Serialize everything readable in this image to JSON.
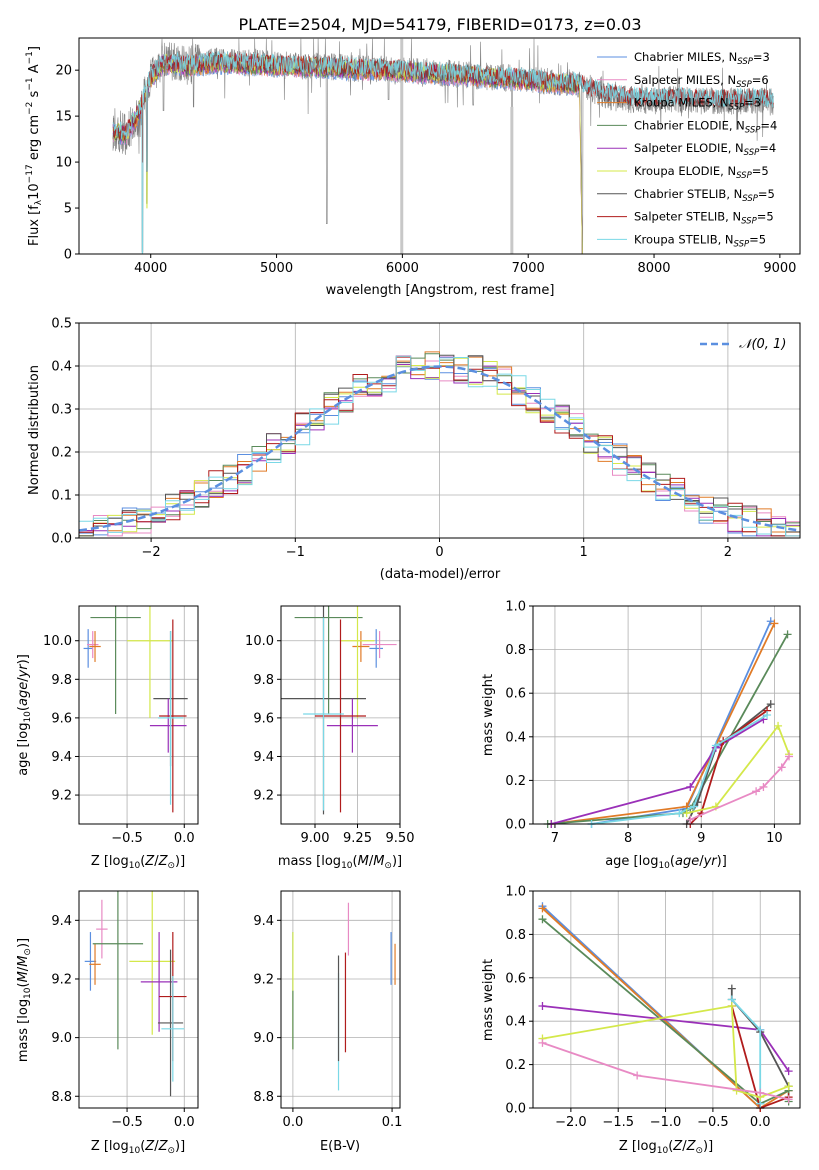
{
  "figure_title": "PLATE=2504, MJD=54179, FIBERID=0173, z=0.03",
  "models": [
    {
      "label": "Chabrier MILES, N",
      "sub": "SSP",
      "count": "=3",
      "color": "#5b8fe0"
    },
    {
      "label": "Salpeter MILES, N",
      "sub": "SSP",
      "count": "=6",
      "color": "#e88ac4"
    },
    {
      "label": "Kroupa MILES, N",
      "sub": "SSP",
      "count": "=3",
      "color": "#e07b27"
    },
    {
      "label": "Chabrier ELODIE, N",
      "sub": "SSP",
      "count": "=4",
      "color": "#5a8a5a"
    },
    {
      "label": "Salpeter ELODIE, N",
      "sub": "SSP",
      "count": "=4",
      "color": "#9a30b8"
    },
    {
      "label": "Kroupa ELODIE, N",
      "sub": "SSP",
      "count": "=5",
      "color": "#d4e84a"
    },
    {
      "label": "Chabrier STELIB, N",
      "sub": "SSP",
      "count": "=5",
      "color": "#555555"
    },
    {
      "label": "Salpeter STELIB, N",
      "sub": "SSP",
      "count": "=5",
      "color": "#b01c1c"
    },
    {
      "label": "Kroupa STELIB, N",
      "sub": "SSP",
      "count": "=5",
      "color": "#7ad8e6"
    }
  ],
  "chart_data": [
    {
      "type": "line",
      "id": "spectrum",
      "xlabel": "wavelength [Angstrom, rest frame]",
      "ylabel": "Flux [fλ10⁻¹⁷ erg cm⁻² s⁻¹ A⁻¹]",
      "xlim": [
        3430,
        9160
      ],
      "ylim": [
        0,
        23.5
      ],
      "xticks": [
        4000,
        5000,
        6000,
        7000,
        8000,
        9000
      ],
      "yticks": [
        0,
        5,
        10,
        15,
        20
      ],
      "data_color": "#808080",
      "data_envelope": {
        "x": [
          3700,
          3800,
          3900,
          4000,
          4100,
          4300,
          4500,
          4800,
          5100,
          5500,
          6000,
          6500,
          7000,
          7400,
          7600,
          7800,
          8000,
          8200,
          8500,
          8800,
          8950
        ],
        "y": [
          13.5,
          13.0,
          15.0,
          19.0,
          21.0,
          20.5,
          21.0,
          20.8,
          20.5,
          20.3,
          20.0,
          19.5,
          19.0,
          18.5,
          17.2,
          16.8,
          16.7,
          16.8,
          16.6,
          16.7,
          16.5
        ]
      },
      "model_envelope": {
        "x": [
          3700,
          3800,
          3900,
          4000,
          4100,
          4300,
          4500,
          4800,
          5100,
          5500,
          6000,
          6500,
          7000,
          7400
        ],
        "y": [
          13.3,
          13.0,
          15.2,
          19.2,
          20.8,
          20.4,
          20.8,
          20.6,
          20.4,
          20.2,
          19.9,
          19.4,
          18.9,
          18.4
        ]
      },
      "stelib_extension": {
        "x": [
          7400,
          7600,
          7800,
          8000,
          8200,
          8500,
          8800,
          8950
        ],
        "y": [
          18.4,
          17.4,
          16.9,
          16.8,
          16.9,
          16.7,
          16.8,
          16.6
        ]
      },
      "absorption_lines": [
        {
          "x": 3934,
          "y": 0.2
        },
        {
          "x": 3969,
          "y": 5.5
        },
        {
          "x": 4102,
          "y": 15.6
        },
        {
          "x": 4340,
          "y": 16.0
        },
        {
          "x": 5400,
          "y": 3.3
        },
        {
          "x": 5890,
          "y": 16.8
        },
        {
          "x": 6563,
          "y": 16.2
        },
        {
          "x": 6870,
          "y": 0
        },
        {
          "x": 7430,
          "y": 0
        }
      ]
    },
    {
      "type": "histogram",
      "id": "residuals",
      "xlabel": "(data-model)/error",
      "ylabel": "Normed distribution",
      "xlim": [
        -2.5,
        2.5
      ],
      "ylim": [
        0,
        0.5
      ],
      "xticks": [
        -2,
        -1,
        0,
        1,
        2
      ],
      "yticks": [
        0.0,
        0.1,
        0.2,
        0.3,
        0.4,
        0.5
      ],
      "bin_width": 0.1,
      "gaussian_label": "𝒩(0, 1)",
      "gaussian_color": "#5b8fe0"
    },
    {
      "type": "scatter",
      "id": "age-vs-Z",
      "xlabel": "Z [log₁₀(Z/Z⊙)]",
      "ylabel": "age  [log₁₀(age/yr)]",
      "xlim": [
        -0.92,
        0.12
      ],
      "ylim": [
        9.05,
        10.18
      ],
      "xticks": [
        -0.5,
        0.0
      ],
      "yticks": [
        9.2,
        9.4,
        9.6,
        9.8,
        10.0
      ],
      "points": [
        {
          "x": -0.84,
          "y": 9.96,
          "xerr": 0.04,
          "yerr": 0.1,
          "color": "#5b8fe0"
        },
        {
          "x": -0.8,
          "y": 9.98,
          "xerr": 0.05,
          "yerr": 0.07,
          "color": "#e88ac4"
        },
        {
          "x": -0.78,
          "y": 9.97,
          "xerr": 0.05,
          "yerr": 0.08,
          "color": "#e07b27"
        },
        {
          "x": -0.6,
          "y": 10.12,
          "xerr": 0.22,
          "yerr": 0.5,
          "color": "#5a8a5a"
        },
        {
          "x": -0.3,
          "y": 10.0,
          "xerr": 0.2,
          "yerr": 0.4,
          "color": "#d4e84a"
        },
        {
          "x": -0.12,
          "y": 9.7,
          "xerr": 0.15,
          "yerr": 0.35,
          "color": "#555555"
        },
        {
          "x": -0.14,
          "y": 9.56,
          "xerr": 0.16,
          "yerr": 0.14,
          "color": "#9a30b8"
        },
        {
          "x": -0.1,
          "y": 9.61,
          "xerr": 0.12,
          "yerr": 0.5,
          "color": "#b01c1c"
        },
        {
          "x": -0.12,
          "y": 9.6,
          "xerr": 0.11,
          "yerr": 0.45,
          "color": "#7ad8e6"
        }
      ]
    },
    {
      "type": "scatter",
      "id": "age-vs-mass",
      "xlabel": "mass [log₁₀(M/M⊙)]",
      "ylabel": "",
      "xlim": [
        8.8,
        9.5
      ],
      "ylim": [
        9.05,
        10.18
      ],
      "xticks": [
        9.0,
        9.25,
        9.5
      ],
      "xticklabels": [
        "9.00",
        "9.25",
        "9.50"
      ],
      "yticks": [
        9.2,
        9.4,
        9.6,
        9.8,
        10.0
      ],
      "points": [
        {
          "x": 9.36,
          "y": 9.96,
          "xerr": 0.04,
          "yerr": 0.1,
          "color": "#5b8fe0"
        },
        {
          "x": 9.38,
          "y": 9.98,
          "xerr": 0.1,
          "yerr": 0.07,
          "color": "#e88ac4"
        },
        {
          "x": 9.27,
          "y": 9.97,
          "xerr": 0.05,
          "yerr": 0.08,
          "color": "#e07b27"
        },
        {
          "x": 9.08,
          "y": 10.12,
          "xerr": 0.2,
          "yerr": 0.5,
          "color": "#5a8a5a"
        },
        {
          "x": 9.25,
          "y": 10.0,
          "xerr": 0.1,
          "yerr": 0.4,
          "color": "#d4e84a"
        },
        {
          "x": 9.05,
          "y": 9.7,
          "xerr": 0.25,
          "yerr": 0.6,
          "color": "#555555"
        },
        {
          "x": 9.22,
          "y": 9.56,
          "xerr": 0.15,
          "yerr": 0.14,
          "color": "#9a30b8"
        },
        {
          "x": 9.15,
          "y": 9.61,
          "xerr": 0.15,
          "yerr": 0.5,
          "color": "#b01c1c"
        },
        {
          "x": 9.05,
          "y": 9.62,
          "xerr": 0.12,
          "yerr": 0.5,
          "color": "#7ad8e6"
        }
      ]
    },
    {
      "type": "line",
      "id": "massweight-vs-age",
      "xlabel": "age  [log₁₀(age/yr)]",
      "ylabel": "mass weight",
      "xlim": [
        6.7,
        10.35
      ],
      "ylim": [
        0,
        1
      ],
      "xticks": [
        7,
        8,
        9,
        10
      ],
      "yticks": [
        0.0,
        0.2,
        0.4,
        0.6,
        0.8,
        1.0
      ],
      "series": [
        {
          "color": "#5b8fe0",
          "x": [
            7.5,
            8.8,
            9.95
          ],
          "y": [
            0.0,
            0.07,
            0.93
          ]
        },
        {
          "color": "#e07b27",
          "x": [
            6.95,
            8.8,
            10.0
          ],
          "y": [
            0.0,
            0.08,
            0.92
          ]
        },
        {
          "color": "#5a8a5a",
          "x": [
            6.9,
            8.75,
            8.85,
            10.18
          ],
          "y": [
            0.0,
            0.05,
            0.07,
            0.87
          ]
        },
        {
          "color": "#555555",
          "x": [
            8.8,
            8.95,
            9.2,
            9.95
          ],
          "y": [
            0.0,
            0.1,
            0.35,
            0.55
          ]
        },
        {
          "color": "#9a30b8",
          "x": [
            6.95,
            8.85,
            9.2,
            9.85
          ],
          "y": [
            0.0,
            0.17,
            0.35,
            0.48
          ]
        },
        {
          "color": "#b01c1c",
          "x": [
            8.85,
            9.0,
            9.3,
            9.9
          ],
          "y": [
            0.0,
            0.05,
            0.38,
            0.52
          ]
        },
        {
          "color": "#7ad8e6",
          "x": [
            7.5,
            8.7,
            8.9,
            9.2,
            9.9
          ],
          "y": [
            0.0,
            0.05,
            0.08,
            0.36,
            0.5
          ]
        },
        {
          "color": "#d4e84a",
          "x": [
            8.8,
            9.2,
            10.05,
            10.2
          ],
          "y": [
            0.05,
            0.08,
            0.45,
            0.32
          ]
        },
        {
          "color": "#e88ac4",
          "x": [
            8.85,
            9.75,
            9.85,
            10.1,
            10.2
          ],
          "y": [
            0.02,
            0.15,
            0.17,
            0.26,
            0.31
          ]
        }
      ]
    },
    {
      "type": "scatter",
      "id": "mass-vs-Z",
      "xlabel": "Z [log₁₀(Z/Z⊙)]",
      "ylabel": "mass [log₁₀(M/M⊙)]",
      "xlim": [
        -0.92,
        0.12
      ],
      "ylim": [
        8.76,
        9.5
      ],
      "xticks": [
        -0.5,
        0.0
      ],
      "yticks": [
        8.8,
        9.0,
        9.2,
        9.4
      ],
      "points": [
        {
          "x": -0.82,
          "y": 9.26,
          "xerr": 0.05,
          "yerr": 0.1,
          "color": "#5b8fe0"
        },
        {
          "x": -0.72,
          "y": 9.37,
          "xerr": 0.05,
          "yerr": 0.1,
          "color": "#e88ac4"
        },
        {
          "x": -0.78,
          "y": 9.25,
          "xerr": 0.05,
          "yerr": 0.07,
          "color": "#e07b27"
        },
        {
          "x": -0.58,
          "y": 9.32,
          "xerr": 0.22,
          "yerr": 0.36,
          "color": "#5a8a5a"
        },
        {
          "x": -0.28,
          "y": 9.26,
          "xerr": 0.2,
          "yerr": 0.25,
          "color": "#d4e84a"
        },
        {
          "x": -0.22,
          "y": 9.19,
          "xerr": 0.16,
          "yerr": 0.17,
          "color": "#9a30b8"
        },
        {
          "x": -0.12,
          "y": 9.05,
          "xerr": 0.11,
          "yerr": 0.25,
          "color": "#555555"
        },
        {
          "x": -0.1,
          "y": 9.14,
          "xerr": 0.12,
          "yerr": 0.22,
          "color": "#b01c1c"
        },
        {
          "x": -0.1,
          "y": 9.03,
          "xerr": 0.1,
          "yerr": 0.18,
          "color": "#7ad8e6"
        }
      ]
    },
    {
      "type": "scatter",
      "id": "mass-vs-ebv",
      "xlabel": "E(B-V)",
      "ylabel": "",
      "xlim": [
        -0.012,
        0.108
      ],
      "ylim": [
        8.76,
        9.5
      ],
      "xticks": [
        0.0,
        0.1
      ],
      "yticks": [
        8.8,
        9.0,
        9.2,
        9.4
      ],
      "points": [
        {
          "x": 0.0,
          "y": 9.26,
          "yerr": 0.1,
          "color": "#5b8fe0"
        },
        {
          "x": 0.056,
          "y": 9.37,
          "yerr": 0.09,
          "color": "#e88ac4"
        },
        {
          "x": 0.103,
          "y": 9.25,
          "yerr": 0.07,
          "color": "#e07b27"
        },
        {
          "x": 0.0,
          "y": 9.16,
          "yerr": 0.2,
          "color": "#d4e84a"
        },
        {
          "x": 0.0,
          "y": 9.06,
          "yerr": 0.1,
          "color": "#5a8a5a"
        },
        {
          "x": 0.046,
          "y": 9.02,
          "yerr": 0.2,
          "color": "#7ad8e6"
        },
        {
          "x": 0.046,
          "y": 9.1,
          "yerr": 0.18,
          "color": "#555555"
        },
        {
          "x": 0.053,
          "y": 9.12,
          "yerr": 0.17,
          "color": "#b01c1c"
        },
        {
          "x": 0.099,
          "y": 9.27,
          "yerr": 0.09,
          "color": "#5b8fe0"
        }
      ]
    },
    {
      "type": "line",
      "id": "massweight-vs-Z",
      "xlabel": "Z [log₁₀(Z/Z⊙)]",
      "ylabel": "mass weight",
      "xlim": [
        -2.4,
        0.42
      ],
      "ylim": [
        0,
        1
      ],
      "xticks": [
        -2.0,
        -1.5,
        -1.0,
        -0.5,
        0.0
      ],
      "yticks": [
        0.0,
        0.2,
        0.4,
        0.6,
        0.8,
        1.0
      ],
      "series": [
        {
          "color": "#5b8fe0",
          "x": [
            -2.3,
            0.0
          ],
          "y": [
            0.93,
            0.0
          ]
        },
        {
          "color": "#e07b27",
          "x": [
            -2.3,
            0.0,
            0.3
          ],
          "y": [
            0.92,
            0.0,
            0.08
          ]
        },
        {
          "color": "#5a8a5a",
          "x": [
            -2.3,
            0.0,
            0.3,
            0.3
          ],
          "y": [
            0.87,
            0.02,
            0.08,
            0.03
          ]
        },
        {
          "color": "#9a30b8",
          "x": [
            -2.3,
            0.0,
            0.3
          ],
          "y": [
            0.47,
            0.36,
            0.17
          ]
        },
        {
          "color": "#555555",
          "x": [
            -0.3,
            -0.3,
            0.0,
            0.3
          ],
          "y": [
            0.55,
            0.5,
            0.35,
            0.1
          ]
        },
        {
          "color": "#b01c1c",
          "x": [
            -0.3,
            0.0,
            0.3
          ],
          "y": [
            0.47,
            0.0,
            0.05
          ]
        },
        {
          "color": "#7ad8e6",
          "x": [
            -0.3,
            0.0,
            0.0
          ],
          "y": [
            0.5,
            0.36,
            0.02
          ]
        },
        {
          "color": "#d4e84a",
          "x": [
            -2.3,
            -0.3,
            -0.25,
            0.0,
            0.3
          ],
          "y": [
            0.32,
            0.47,
            0.08,
            0.05,
            0.1
          ]
        },
        {
          "color": "#e88ac4",
          "x": [
            -2.3,
            -1.3,
            0.0,
            0.3
          ],
          "y": [
            0.3,
            0.15,
            0.07,
            0.04
          ]
        }
      ]
    }
  ]
}
